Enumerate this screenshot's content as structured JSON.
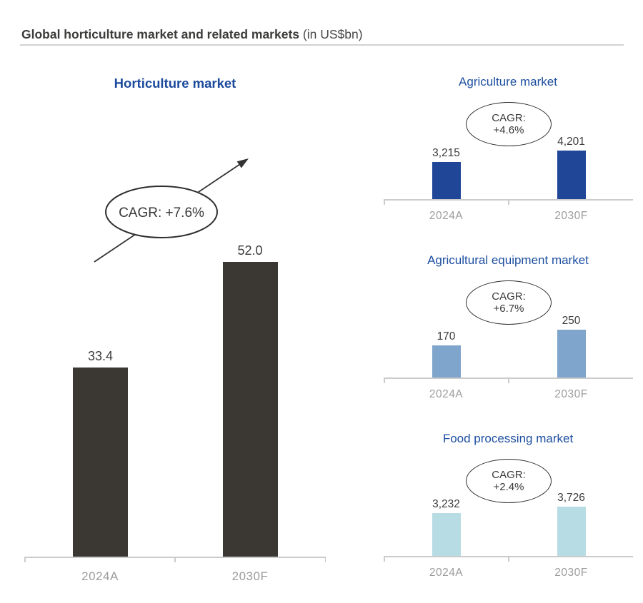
{
  "header": {
    "title": "Global horticulture market and related markets",
    "unit_suffix": " (in US$bn)"
  },
  "colors": {
    "horticulture_bar": "#3b3834",
    "agriculture_bar": "#1f4697",
    "equipment_bar": "#7fa5cc",
    "food_bar": "#b8dce3",
    "heading_blue_bold": "#1b4a9c",
    "heading_blue": "#1e4fa0",
    "axis_gray": "#cbcbcb",
    "category_gray": "#9c9c9c",
    "value_text": "#3c3c3c"
  },
  "chart_data": [
    {
      "id": "horticulture-market",
      "type": "bar",
      "title": "Horticulture market",
      "categories": [
        "2024A",
        "2030F"
      ],
      "values": [
        33.4,
        52.0
      ],
      "value_labels": [
        "33.4",
        "52.0"
      ],
      "cagr_label": "CAGR: +7.6%",
      "annotation": "upward trend arrow through CAGR ellipse",
      "unit": "US$bn",
      "ylim": [
        0,
        55
      ],
      "grid": false,
      "legend": "none",
      "bar_color": "#3b3834"
    },
    {
      "id": "agriculture-market",
      "type": "bar",
      "title": "Agriculture market",
      "categories": [
        "2024A",
        "2030F"
      ],
      "values": [
        3215,
        4201
      ],
      "value_labels": [
        "3,215",
        "4,201"
      ],
      "cagr_label": "CAGR:",
      "cagr_value": "+4.6%",
      "unit": "US$bn",
      "ylim": [
        0,
        4600
      ],
      "grid": false,
      "legend": "none",
      "bar_color": "#1f4697"
    },
    {
      "id": "agricultural-equipment-market",
      "type": "bar",
      "title": "Agricultural equipment market",
      "categories": [
        "2024A",
        "2030F"
      ],
      "values": [
        170,
        250
      ],
      "value_labels": [
        "170",
        "250"
      ],
      "cagr_label": "CAGR:",
      "cagr_value": "+6.7%",
      "unit": "US$bn",
      "ylim": [
        0,
        275
      ],
      "grid": false,
      "legend": "none",
      "bar_color": "#7fa5cc"
    },
    {
      "id": "food-processing-market",
      "type": "bar",
      "title": "Food processing market",
      "categories": [
        "2024A",
        "2030F"
      ],
      "values": [
        3232,
        3726
      ],
      "value_labels": [
        "3,232",
        "3,726"
      ],
      "cagr_label": "CAGR:",
      "cagr_value": "+2.4%",
      "unit": "US$bn",
      "ylim": [
        0,
        4100
      ],
      "grid": false,
      "legend": "none",
      "bar_color": "#b8dce3"
    }
  ]
}
